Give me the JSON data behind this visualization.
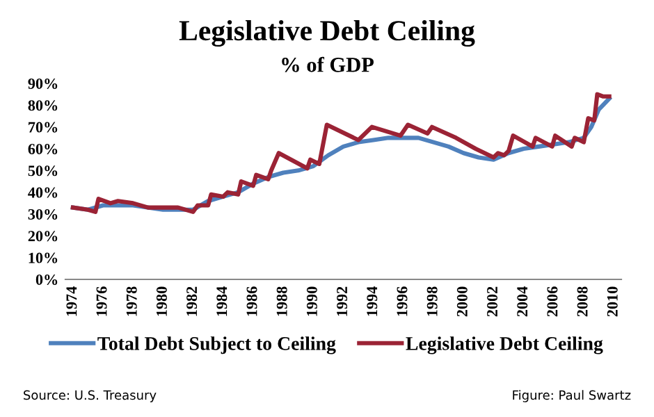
{
  "chart_data": {
    "type": "line",
    "title": "Legislative Debt Ceiling",
    "subtitle": "% of GDP",
    "annotations": [
      "Source: U.S. Treasury",
      "Figure: Paul Swartz"
    ],
    "series": [
      {
        "name": "Total Debt Subject to Ceiling",
        "color": "#4f81bd",
        "x": [
          1974,
          1975,
          1976,
          1978,
          1980,
          1982,
          1983,
          1984,
          1985,
          1986,
          1987,
          1988,
          1989,
          1990,
          1991,
          1992,
          1993,
          1994,
          1995,
          1996,
          1997,
          1998,
          1999,
          2000,
          2001,
          2002,
          2003,
          2004,
          2005,
          2006,
          2007,
          2008,
          2008.5,
          2009,
          2009.7
        ],
        "values": [
          33,
          32,
          34,
          34,
          32,
          32,
          36,
          38,
          40,
          44,
          47,
          49,
          50,
          52,
          57,
          61,
          63,
          64,
          65,
          65,
          65,
          63,
          61,
          58,
          56,
          55,
          58,
          60,
          61,
          62,
          63,
          65,
          70,
          78,
          83
        ]
      },
      {
        "name": "Legislative Debt Ceiling",
        "color": "#9b2335",
        "x": [
          1974,
          1975,
          1975.5,
          1975.7,
          1976.5,
          1977,
          1978,
          1979,
          1980,
          1981,
          1982,
          1982.3,
          1983,
          1983.2,
          1984,
          1984.3,
          1985,
          1985.2,
          1986,
          1986.2,
          1987,
          1987.2,
          1987.7,
          1989.6,
          1989.8,
          1990.4,
          1990.9,
          1993.0,
          1993.9,
          1995.8,
          1996.3,
          1997.6,
          1997.9,
          1999.5,
          2000.8,
          2002.0,
          2002.3,
          2002.7,
          2003.0,
          2003.3,
          2004.6,
          2004.8,
          2005.9,
          2006.1,
          2007.2,
          2007.4,
          2008.0,
          2008.3,
          2008.7,
          2008.9,
          2009.3,
          2009.7
        ],
        "values": [
          33,
          32,
          31,
          37,
          35,
          36,
          35,
          33,
          33,
          33,
          31,
          34,
          34,
          39,
          38,
          40,
          39,
          45,
          43,
          48,
          46,
          50,
          58,
          51,
          55,
          53,
          71,
          64,
          70,
          66,
          71,
          67,
          70,
          65,
          60,
          56,
          58,
          57,
          59,
          66,
          61,
          65,
          61,
          66,
          61,
          65,
          63,
          74,
          73,
          85,
          84,
          84
        ]
      }
    ],
    "xlim": [
      1973.5,
      2010.5
    ],
    "xticks": [
      1974,
      1976,
      1978,
      1980,
      1982,
      1984,
      1986,
      1988,
      1990,
      1992,
      1994,
      1996,
      1998,
      2000,
      2002,
      2004,
      2006,
      2008,
      2010
    ],
    "ylim": [
      0,
      90
    ],
    "yticks": [
      {
        "value": 0,
        "label": "0%"
      },
      {
        "value": 10,
        "label": "10%"
      },
      {
        "value": 20,
        "label": "20%"
      },
      {
        "value": 30,
        "label": "30%"
      },
      {
        "value": 40,
        "label": "40%"
      },
      {
        "value": 50,
        "label": "50%"
      },
      {
        "value": 60,
        "label": "60%"
      },
      {
        "value": 70,
        "label": "70%"
      },
      {
        "value": 80,
        "label": "80%"
      },
      {
        "value": 90,
        "label": "90%"
      }
    ],
    "legend": "bottom",
    "grid": false
  }
}
